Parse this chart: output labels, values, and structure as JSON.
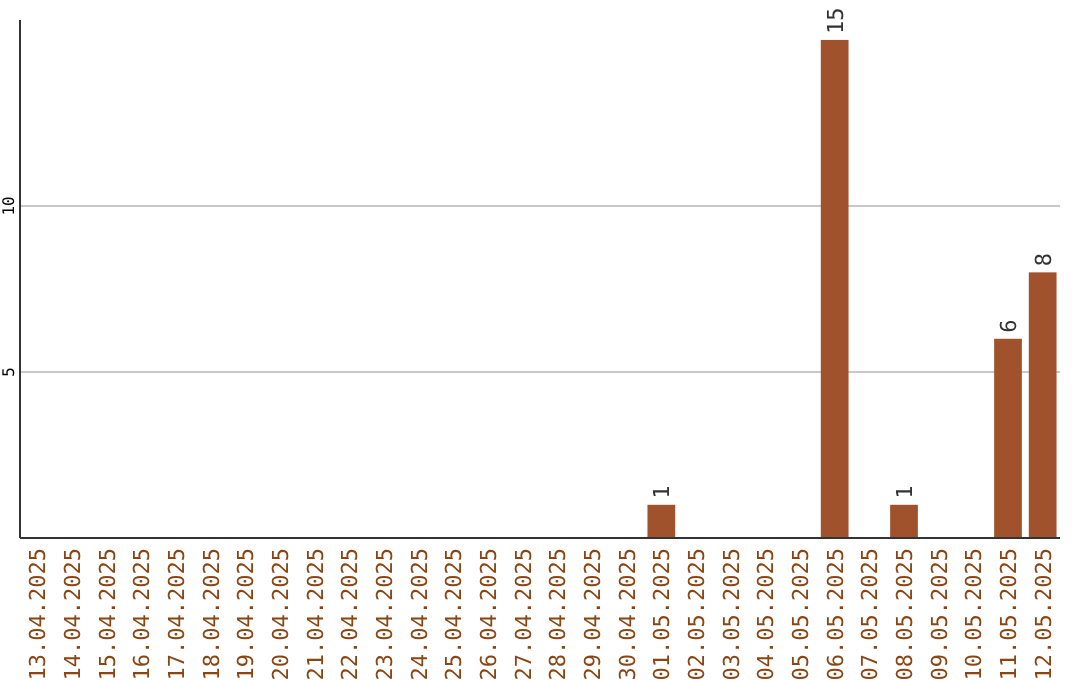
{
  "chart_data": {
    "type": "bar",
    "categories": [
      "13.04.2025",
      "14.04.2025",
      "15.04.2025",
      "16.04.2025",
      "17.04.2025",
      "18.04.2025",
      "19.04.2025",
      "20.04.2025",
      "21.04.2025",
      "22.04.2025",
      "23.04.2025",
      "24.04.2025",
      "25.04.2025",
      "26.04.2025",
      "27.04.2025",
      "28.04.2025",
      "29.04.2025",
      "30.04.2025",
      "01.05.2025",
      "02.05.2025",
      "03.05.2025",
      "04.05.2025",
      "05.05.2025",
      "06.05.2025",
      "07.05.2025",
      "08.05.2025",
      "09.05.2025",
      "10.05.2025",
      "11.05.2025",
      "12.05.2025"
    ],
    "values": [
      0,
      0,
      0,
      0,
      0,
      0,
      0,
      0,
      0,
      0,
      0,
      0,
      0,
      0,
      0,
      0,
      0,
      0,
      1,
      0,
      0,
      0,
      0,
      15,
      0,
      1,
      0,
      0,
      6,
      8
    ],
    "value_labels": [
      null,
      null,
      null,
      null,
      null,
      null,
      null,
      null,
      null,
      null,
      null,
      null,
      null,
      null,
      null,
      null,
      null,
      null,
      "1",
      null,
      null,
      null,
      null,
      "15",
      null,
      "1",
      null,
      null,
      "6",
      "8"
    ],
    "color": "#a0522d",
    "ylim": [
      0,
      15.6
    ],
    "yticks": [
      5,
      10
    ],
    "grid": "y"
  }
}
